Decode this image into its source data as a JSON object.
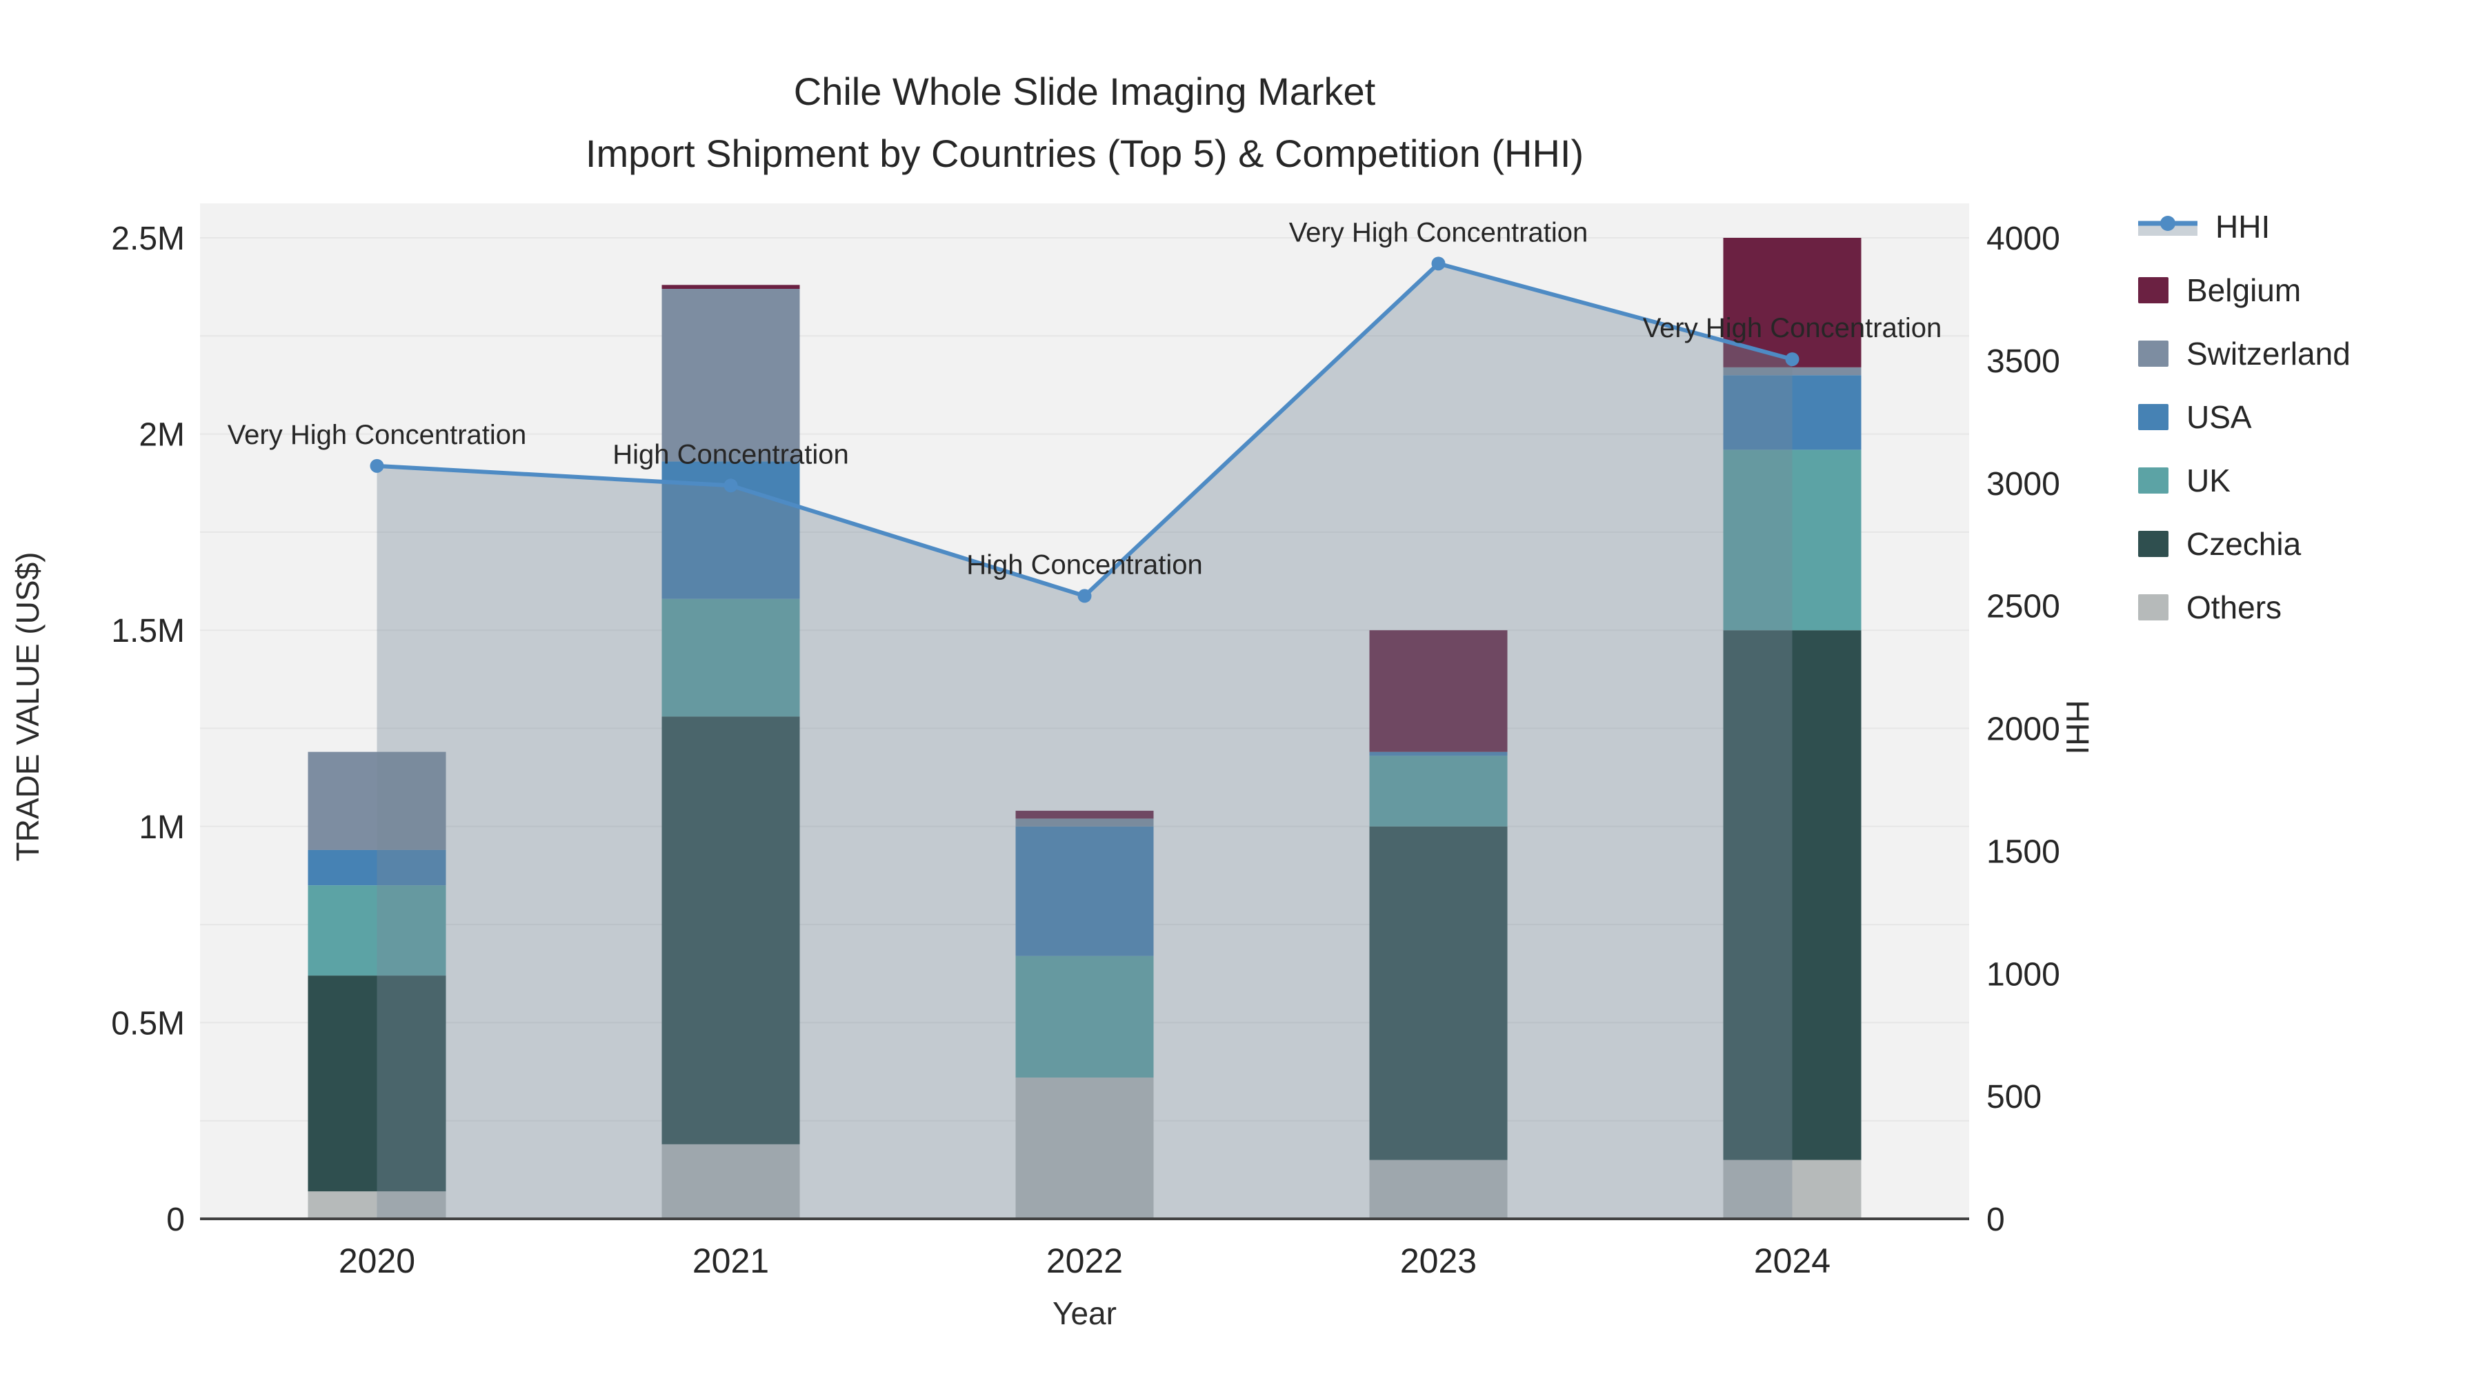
{
  "title": {
    "line1": "Chile Whole Slide Imaging Market",
    "line2": "Import Shipment by Countries (Top 5) & Competition (HHI)"
  },
  "axes": {
    "x_title": "Year",
    "y_left_title": "TRADE VALUE (US$)",
    "y_right_title": "HHI",
    "y_left_ticks": [
      "0",
      "0.5M",
      "1M",
      "1.5M",
      "2M",
      "2.5M"
    ],
    "y_left_tick_values": [
      0,
      500000,
      1000000,
      1500000,
      2000000,
      2500000
    ],
    "y_right_ticks": [
      "0",
      "500",
      "1000",
      "1500",
      "2000",
      "2500",
      "3000",
      "3500",
      "4000"
    ],
    "y_right_tick_values": [
      0,
      500,
      1000,
      1500,
      2000,
      2500,
      3000,
      3500,
      4000
    ]
  },
  "legend": {
    "items": [
      {
        "label": "HHI",
        "type": "line",
        "color": "#4E8BC4"
      },
      {
        "label": "Belgium",
        "type": "bar",
        "color": "#6B2142"
      },
      {
        "label": "Switzerland",
        "type": "bar",
        "color": "#7D8DA1"
      },
      {
        "label": "USA",
        "type": "bar",
        "color": "#4682B4"
      },
      {
        "label": "UK",
        "type": "bar",
        "color": "#5CA3A5"
      },
      {
        "label": "Czechia",
        "type": "bar",
        "color": "#2F4F4F"
      },
      {
        "label": "Others",
        "type": "bar",
        "color": "#B6BABA"
      }
    ]
  },
  "chart_data": {
    "type": "combo-stacked-bar-line",
    "title": "Chile Whole Slide Imaging Market — Import Shipment by Countries (Top 5) & Competition (HHI)",
    "categories": [
      "2020",
      "2021",
      "2022",
      "2023",
      "2024"
    ],
    "xlabel": "Year",
    "ylabel_left": "TRADE VALUE (US$)",
    "ylabel_right": "HHI",
    "ylim_left": [
      0,
      2590000
    ],
    "ylim_right": [
      0,
      4140
    ],
    "grid": "horizontal",
    "legend_position": "right",
    "bar_stack_order_bottom_to_top": [
      "Others",
      "Czechia",
      "UK",
      "USA",
      "Switzerland",
      "Belgium"
    ],
    "series": [
      {
        "name": "Belgium",
        "type": "bar",
        "color": "#6B2142",
        "values": [
          0,
          10000,
          20000,
          310000,
          330000
        ]
      },
      {
        "name": "Switzerland",
        "type": "bar",
        "color": "#7D8DA1",
        "values": [
          250000,
          440000,
          20000,
          0,
          20000
        ]
      },
      {
        "name": "USA",
        "type": "bar",
        "color": "#4682B4",
        "values": [
          90000,
          350000,
          330000,
          10000,
          190000
        ]
      },
      {
        "name": "UK",
        "type": "bar",
        "color": "#5CA3A5",
        "values": [
          230000,
          300000,
          310000,
          180000,
          460000
        ]
      },
      {
        "name": "Czechia",
        "type": "bar",
        "color": "#2F4F4F",
        "values": [
          550000,
          1090000,
          0,
          850000,
          1350000
        ]
      },
      {
        "name": "Others",
        "type": "bar",
        "color": "#B6BABA",
        "values": [
          70000,
          190000,
          360000,
          150000,
          150000
        ]
      }
    ],
    "bar_totals": [
      1190000,
      2380000,
      1040000,
      1500000,
      2500000
    ],
    "line_series": {
      "name": "HHI",
      "axis": "right",
      "color": "#4E8BC4",
      "fill": "tozeroy",
      "fill_color": "rgba(119,136,153,0.38)",
      "values": [
        3070,
        2990,
        2540,
        3895,
        3505
      ]
    },
    "annotations": [
      {
        "x": "2020",
        "label": "Very High Concentration"
      },
      {
        "x": "2021",
        "label": "High Concentration"
      },
      {
        "x": "2022",
        "label": "High Concentration"
      },
      {
        "x": "2023",
        "label": "Very High Concentration"
      },
      {
        "x": "2024",
        "label": "Very High Concentration"
      }
    ]
  },
  "colors": {
    "plot_background": "#F2F2F2",
    "page_background": "#FFFFFF",
    "gridline": "#E6E6E6",
    "axis_line": "#424242",
    "text": "#262626"
  }
}
